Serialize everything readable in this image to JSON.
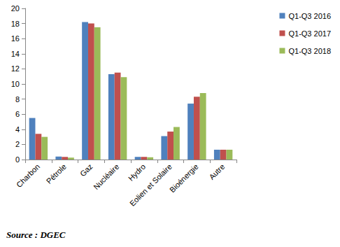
{
  "chart_data": {
    "type": "bar",
    "source": "Source : DGEC",
    "categories": [
      "Charbon",
      "Pétrole",
      "Gaz",
      "Nucléaire",
      "Hydro",
      "Eolien et Solaire",
      "Bioénergie",
      "Autre"
    ],
    "series": [
      {
        "name": "Q1-Q3 2016",
        "color": "#4f81bd",
        "values": [
          5.5,
          0.4,
          18.2,
          11.3,
          0.35,
          3.1,
          7.4,
          1.3
        ]
      },
      {
        "name": "Q1-Q3 2017",
        "color": "#c0504d",
        "values": [
          3.4,
          0.35,
          18.0,
          11.5,
          0.35,
          3.7,
          8.3,
          1.3
        ]
      },
      {
        "name": "Q1-Q3 2018",
        "color": "#9bbb59",
        "values": [
          3.0,
          0.25,
          17.5,
          10.9,
          0.3,
          4.3,
          8.8,
          1.3
        ]
      }
    ],
    "ylim": [
      0,
      20
    ],
    "yticks": [
      0,
      2,
      4,
      6,
      8,
      10,
      12,
      14,
      16,
      18,
      20
    ],
    "grid": false,
    "legend": "upper right"
  }
}
